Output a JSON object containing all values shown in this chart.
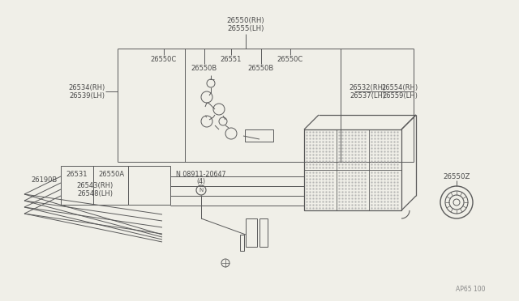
{
  "bg_color": "#f0efe8",
  "line_color": "#5a5a5a",
  "text_color": "#4a4a4a",
  "fig_code": "AP65 100",
  "top_label1": "26550(RH)",
  "top_label2": "26555(LH)",
  "label_26550C_L": "26550C",
  "label_26551": "26551",
  "label_26550C_R": "26550C",
  "label_26550B_L": "26550B",
  "label_26550B_R": "26550B",
  "label_26534": "26534(RH)",
  "label_26539": "26539(LH)",
  "label_26532": "26532(RH)",
  "label_26554": "26554(RH)",
  "label_26537": "26537(LH)",
  "label_26559": "26559(LH)",
  "label_26531": "26531",
  "label_26550A": "26550A",
  "label_26190B": "26190B",
  "label_26543": "26543(RH)",
  "label_26548": "26548(LH)",
  "label_bolt1": "N 08911-20647",
  "label_bolt2": "(4)",
  "label_26550Z": "26550Z"
}
